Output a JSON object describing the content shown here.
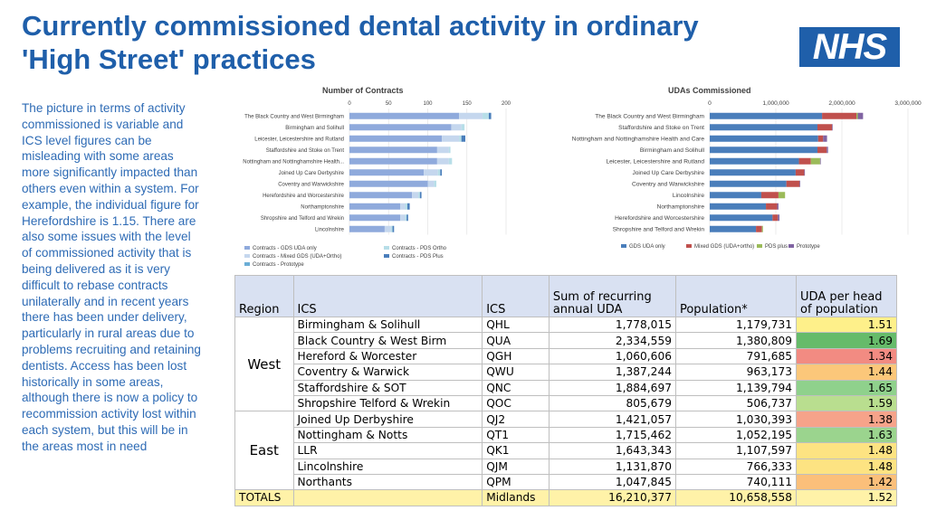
{
  "slide": {
    "title_line1": "Currently commissioned dental activity in ordinary",
    "title_line2": "'High Street' practices",
    "logo_text": "NHS",
    "body_text": "The picture in terms of activity commissioned is variable and ICS level figures can be misleading with some areas more significantly impacted than others even within a system.  For example, the individual figure for Herefordshire is 1.15.  There are also some issues with the level of commissioned activity that is being delivered as it is very difficult to rebase contracts unilaterally and in recent years there has been under delivery, particularly in rural areas due to problems recruiting and retaining dentists.  Access has been lost historically in some areas, although there is now a policy to recommission activity lost within each system, but this will be in the areas most in need",
    "colors": {
      "title": "#1f5faa",
      "body": "#2e6bb5",
      "logo_bg": "#1f5faa"
    }
  },
  "chart_data": [
    {
      "type": "bar",
      "stacked": true,
      "orientation": "horizontal",
      "title": "Number of Contracts",
      "xlim": [
        0,
        200
      ],
      "ticks": [
        "0",
        "50",
        "100",
        "150",
        "200"
      ],
      "categories": [
        "The Black Country and West Birmingham",
        "Birmingham and Solihull",
        "Leicester, Leicestershire and Rutland",
        "Staffordshire and Stoke on Trent",
        "Nottingham and Nottinghamshire Health...",
        "Joined Up Care Derbyshire",
        "Coventry and Warwickshire",
        "Herefordshire and Worcestershire",
        "Northamptonshire",
        "Shropshire and Telford and Wrekin",
        "Lincolnshire"
      ],
      "series": [
        {
          "name": "Contracts - GDS UDA only",
          "color": "#8faadc",
          "values": [
            140,
            130,
            118,
            112,
            112,
            95,
            100,
            80,
            65,
            65,
            45
          ]
        },
        {
          "name": "Contracts - Mixed GDS (UDA+Ortho)",
          "color": "#c5d7ee",
          "values": [
            30,
            13,
            22,
            15,
            15,
            18,
            8,
            8,
            6,
            6,
            8
          ]
        },
        {
          "name": "Contracts - PDS Ortho",
          "color": "#b7dee8",
          "values": [
            8,
            4,
            3,
            2,
            4,
            3,
            3,
            2,
            3,
            2,
            2
          ]
        },
        {
          "name": "Contracts - PDS Plus",
          "color": "#4a7ebb",
          "values": [
            3,
            0,
            5,
            0,
            0,
            2,
            0,
            2,
            3,
            2,
            2
          ]
        },
        {
          "name": "Contracts - Prototype",
          "color": "#6baed6",
          "values": [
            0,
            0,
            0,
            0,
            0,
            0,
            0,
            0,
            0,
            0,
            0
          ]
        }
      ],
      "legend": [
        {
          "label": "Contracts - GDS UDA only",
          "color": "#8faadc"
        },
        {
          "label": "Contracts - PDS Ortho",
          "color": "#b7dee8"
        },
        {
          "label": "Contracts - Mixed GDS (UDA+Ortho)",
          "color": "#c5d7ee"
        },
        {
          "label": "Contracts - PDS Plus",
          "color": "#4a7ebb"
        },
        {
          "label": "Contracts - Prototype",
          "color": "#6baed6"
        }
      ]
    },
    {
      "type": "bar",
      "stacked": true,
      "orientation": "horizontal",
      "title": "UDAs Commissioned",
      "xlim": [
        0,
        3000000
      ],
      "ticks": [
        "0",
        "1,000,000",
        "2,000,000",
        "3,000,000"
      ],
      "categories": [
        "The Black Country and West Birmingham",
        "Staffordshire and Stoke on Trent",
        "Nottingham and Nottinghamshire Health and Care",
        "Birmingham and Solihull",
        "Leicester, Leicestershire and Rutland",
        "Joined Up Care Derbyshire",
        "Coventry and Warwickshire",
        "Lincolnshire",
        "Northamptonshire",
        "Herefordshire and Worcestershire",
        "Shropshire and Telford and Wrekin"
      ],
      "series": [
        {
          "name": "GDS UDA only",
          "color": "#4a7ebb",
          "values": [
            1700000,
            1630000,
            1640000,
            1630000,
            1350000,
            1300000,
            1160000,
            780000,
            850000,
            950000,
            700000
          ]
        },
        {
          "name": "Mixed GDS (UDA+ortho)",
          "color": "#c0504d",
          "values": [
            520000,
            220000,
            75000,
            140000,
            180000,
            130000,
            200000,
            260000,
            170000,
            80000,
            90000
          ]
        },
        {
          "name": "PDS plus",
          "color": "#9bbb59",
          "values": [
            20000,
            0,
            0,
            0,
            140000,
            0,
            0,
            100000,
            0,
            0,
            15000
          ]
        },
        {
          "name": "Prototype",
          "color": "#8064a2",
          "values": [
            80000,
            10000,
            60000,
            20000,
            10000,
            10000,
            10000,
            0,
            20000,
            25000,
            0
          ]
        }
      ],
      "legend": [
        {
          "label": "GDS UDA only",
          "color": "#4a7ebb"
        },
        {
          "label": "Mixed GDS (UDA+ortho)",
          "color": "#c0504d"
        },
        {
          "label": "PDS plus",
          "color": "#9bbb59"
        },
        {
          "label": "Prototype",
          "color": "#8064a2"
        }
      ]
    },
    {
      "type": "table",
      "headers": [
        "Region",
        "ICS",
        "ICS",
        "Sum of recurring annual UDA",
        "Population*",
        "UDA per head of population"
      ],
      "groups": [
        {
          "region": "West",
          "rows": [
            {
              "ics_name": "Birmingham & Solihull",
              "code": "QHL",
              "uda": "1,778,015",
              "population": "1,179,731",
              "per_head": "1.51",
              "color": "#fef08a"
            },
            {
              "ics_name": "Black Country & West Birm",
              "code": "QUA",
              "uda": "2,334,559",
              "population": "1,380,809",
              "per_head": "1.69",
              "color": "#66bb6a"
            },
            {
              "ics_name": "Hereford & Worcester",
              "code": "QGH",
              "uda": "1,060,606",
              "population": "791,685",
              "per_head": "1.34",
              "color": "#f28b82"
            },
            {
              "ics_name": "Coventry & Warwick",
              "code": "QWU",
              "uda": "1,387,244",
              "population": "963,173",
              "per_head": "1.44",
              "color": "#fbc77a"
            },
            {
              "ics_name": "Staffordshire & SOT",
              "code": "QNC",
              "uda": "1,884,697",
              "population": "1,139,794",
              "per_head": "1.65",
              "color": "#8fd18c"
            },
            {
              "ics_name": "Shropshire Telford & Wrekin",
              "code": "QOC",
              "uda": "805,679",
              "population": "506,737",
              "per_head": "1.59",
              "color": "#b9de8f"
            }
          ]
        },
        {
          "region": "East",
          "rows": [
            {
              "ics_name": "Joined Up Derbyshire",
              "code": "QJ2",
              "uda": "1,421,057",
              "population": "1,030,393",
              "per_head": "1.38",
              "color": "#f6a38a"
            },
            {
              "ics_name": "Nottingham & Notts",
              "code": "QT1",
              "uda": "1,715,462",
              "population": "1,052,195",
              "per_head": "1.63",
              "color": "#9bd48e"
            },
            {
              "ics_name": "LLR",
              "code": "QK1",
              "uda": "1,643,343",
              "population": "1,107,597",
              "per_head": "1.48",
              "color": "#fde382"
            },
            {
              "ics_name": "Lincolnshire",
              "code": "QJM",
              "uda": "1,131,870",
              "population": "766,333",
              "per_head": "1.48",
              "color": "#fde382"
            },
            {
              "ics_name": "Northants",
              "code": "QPM",
              "uda": "1,047,845",
              "population": "740,111",
              "per_head": "1.42",
              "color": "#fbbf7a"
            }
          ]
        }
      ],
      "totals": {
        "label": "TOTALS",
        "code": "Midlands",
        "uda": "16,210,377",
        "population": "10,658,558",
        "per_head": "1.52"
      }
    }
  ]
}
